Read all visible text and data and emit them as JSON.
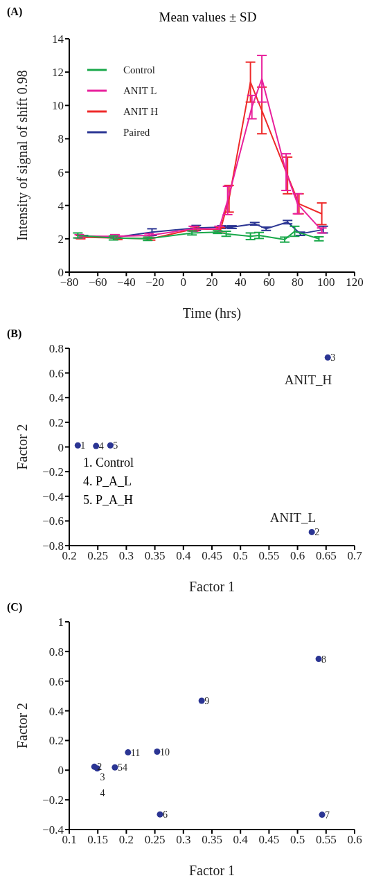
{
  "chart_data": [
    {
      "type": "line",
      "title": "Mean values ± SD",
      "xlabel": "Time (hrs)",
      "ylabel": "Intensity of signal of shift 0.98",
      "annotations": [
        "(A)"
      ],
      "xlim": [
        -80,
        120
      ],
      "xticks": [
        -80,
        -60,
        -40,
        -20,
        0,
        20,
        40,
        60,
        80,
        100,
        120
      ],
      "ylim": [
        0,
        14
      ],
      "yticks": [
        0,
        2,
        4,
        6,
        8,
        10,
        12,
        14
      ],
      "legend": "top left",
      "marker": "none",
      "line_style": "solid",
      "grid": false,
      "series": [
        {
          "name": "Control",
          "color": "#19a84a",
          "x": [
            -74,
            -49,
            -25,
            6,
            24,
            30,
            47,
            53,
            71,
            78,
            95
          ],
          "values": [
            2.2,
            2.05,
            2.0,
            2.35,
            2.4,
            2.3,
            2.15,
            2.2,
            1.95,
            2.45,
            2.0
          ],
          "errors": [
            0.15,
            0.12,
            0.1,
            0.12,
            0.08,
            0.15,
            0.2,
            0.18,
            0.15,
            0.3,
            0.12
          ]
        },
        {
          "name": "ANIT L",
          "color": "#e8209c",
          "x": [
            -73,
            -48,
            -24,
            7,
            25,
            31,
            48,
            55,
            72,
            80,
            97
          ],
          "values": [
            2.15,
            2.15,
            2.2,
            2.6,
            2.6,
            4.3,
            9.9,
            11.6,
            6.0,
            4.1,
            2.5
          ],
          "errors": [
            0.1,
            0.1,
            0.1,
            0.15,
            0.15,
            0.85,
            0.7,
            1.4,
            1.1,
            0.6,
            0.15
          ]
        },
        {
          "name": "ANIT H",
          "color": "#ee2a2a",
          "x": [
            -72,
            -46,
            -23,
            8,
            26,
            32,
            47,
            55,
            73,
            81,
            97
          ],
          "values": [
            2.1,
            2.05,
            2.0,
            2.6,
            2.55,
            4.4,
            11.4,
            9.7,
            5.8,
            4.1,
            3.5
          ],
          "errors": [
            0.1,
            0.1,
            0.08,
            0.12,
            0.12,
            0.8,
            1.2,
            1.4,
            1.1,
            0.6,
            0.65
          ]
        },
        {
          "name": "Paired",
          "color": "#2b3593",
          "x": [
            -70,
            -47,
            -22,
            9,
            27,
            34,
            50,
            58,
            73,
            82,
            98
          ],
          "values": [
            2.15,
            2.1,
            2.4,
            2.65,
            2.7,
            2.7,
            2.9,
            2.6,
            3.0,
            2.3,
            2.55
          ],
          "errors": [
            0.05,
            0.05,
            0.2,
            0.15,
            0.08,
            0.08,
            0.08,
            0.1,
            0.1,
            0.1,
            0.2
          ]
        }
      ]
    },
    {
      "type": "scatter",
      "xlabel": "Factor 1",
      "ylabel": "Factor 2",
      "marker": "circle",
      "grid": false,
      "xlim": [
        0.2,
        0.7
      ],
      "xticks": [
        0.2,
        0.25,
        0.3,
        0.35,
        0.4,
        0.45,
        0.5,
        0.55,
        0.6,
        0.65,
        0.7
      ],
      "ylim": [
        -0.8,
        0.8
      ],
      "yticks": [
        -0.8,
        -0.6,
        -0.4,
        -0.2,
        0,
        0.2,
        0.4,
        0.6,
        0.8
      ],
      "x": [
        0.215,
        0.247,
        0.272,
        0.625,
        0.653
      ],
      "values": [
        0.013,
        0.008,
        0.013,
        -0.69,
        0.725
      ],
      "color": "#2b3593",
      "annotations": [
        "(B)",
        "1. Control",
        "4. P_A_L",
        "5. P_A_H",
        {
          "text": "1",
          "x": 0.215,
          "y": 0.013
        },
        {
          "text": "4",
          "x": 0.247,
          "y": 0.008
        },
        {
          "text": "5",
          "x": 0.272,
          "y": 0.013
        },
        {
          "text": "2",
          "x": 0.625,
          "y": -0.69
        },
        {
          "text": "3",
          "x": 0.653,
          "y": 0.725
        },
        {
          "text": "ANIT_H",
          "x": 0.653,
          "y": 0.725
        },
        {
          "text": "ANIT_L",
          "x": 0.625,
          "y": -0.69
        }
      ]
    },
    {
      "type": "scatter",
      "xlabel": "Factor 1",
      "ylabel": "Factor 2",
      "marker": "circle",
      "grid": false,
      "xlim": [
        0.1,
        0.6
      ],
      "xticks": [
        0.1,
        0.15,
        0.2,
        0.25,
        0.3,
        0.35,
        0.4,
        0.45,
        0.5,
        0.55,
        0.6
      ],
      "ylim": [
        -0.4,
        1
      ],
      "yticks": [
        -0.4,
        -0.2,
        0,
        0.2,
        0.4,
        0.6,
        0.8,
        1
      ],
      "x": [
        0.144,
        0.149,
        0.18,
        0.203,
        0.254,
        0.259,
        0.332,
        0.537,
        0.543
      ],
      "values": [
        0.023,
        0.012,
        0.019,
        0.12,
        0.125,
        -0.298,
        0.468,
        0.75,
        -0.3
      ],
      "color": "#2b3593",
      "annotations": [
        "(C)",
        {
          "text": "2",
          "x": 0.144,
          "y": 0.023
        },
        {
          "text": "3",
          "x": 0.149,
          "y": 0.012
        },
        {
          "text": "4",
          "x": 0.149,
          "y": 0.012
        },
        {
          "text": "54",
          "x": 0.18,
          "y": 0.019
        },
        {
          "text": "11",
          "x": 0.203,
          "y": 0.12
        },
        {
          "text": "10",
          "x": 0.254,
          "y": 0.125
        },
        {
          "text": "6",
          "x": 0.259,
          "y": -0.298
        },
        {
          "text": "9",
          "x": 0.332,
          "y": 0.468
        },
        {
          "text": "8",
          "x": 0.537,
          "y": 0.75
        },
        {
          "text": "7",
          "x": 0.543,
          "y": -0.3
        }
      ]
    }
  ]
}
